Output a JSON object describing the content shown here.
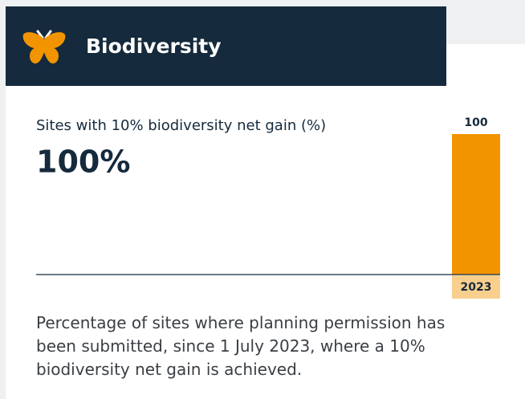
{
  "header": {
    "title": "Biodiversity"
  },
  "chart_data": {
    "type": "bar",
    "title": "Sites with 10% biodiversity net gain (%)",
    "headline": "100%",
    "categories": [
      "2023"
    ],
    "values": [
      100
    ],
    "color": "#f29400",
    "category_color": "#f9cf8e",
    "ylim": [
      0,
      100
    ],
    "grid": false,
    "description": "Percentage of sites where planning permission has been submitted, since 1 July 2023, where a 10% biodiversity net gain is achieved."
  }
}
